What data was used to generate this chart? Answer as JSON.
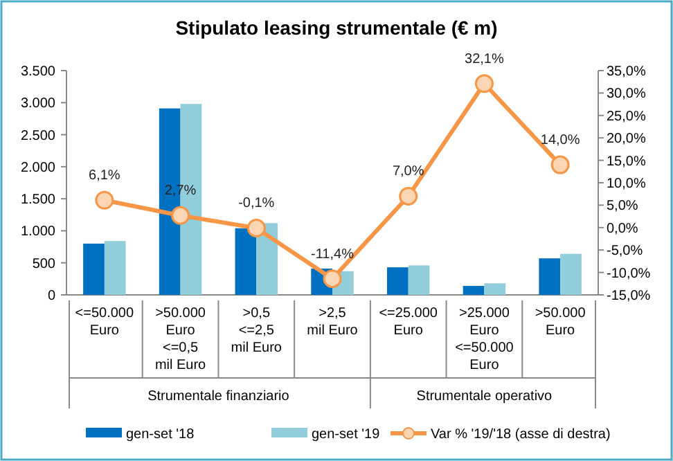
{
  "chart_data": {
    "type": "bar",
    "title": "Stipulato leasing strumentale (€ m)",
    "categories": [
      "<=50.000\nEuro",
      ">50.000\nEuro\n<=0,5\nmil Euro",
      ">0,5\n<=2,5\nmil Euro",
      ">2,5\nmil Euro",
      "<=25.000\nEuro",
      ">25.000\nEuro\n<=50.000\nEuro",
      ">50.000\nEuro"
    ],
    "series": [
      {
        "name": "gen-set '18",
        "color": "#0070c0",
        "values": [
          800,
          2910,
          1040,
          410,
          430,
          140,
          570
        ]
      },
      {
        "name": "gen-set '19",
        "color": "#92cddc",
        "values": [
          840,
          2980,
          1120,
          370,
          460,
          180,
          640
        ]
      },
      {
        "name": "Var % '19/'18 (asse di destra)",
        "type": "line",
        "axis": "y2",
        "color": "#f79646",
        "marker": "circle",
        "values": [
          6.1,
          2.7,
          -0.1,
          -11.4,
          7.0,
          32.1,
          14.0
        ],
        "value_labels": [
          "6,1%",
          "2,7%",
          "-0,1%",
          "-11,4%",
          "7,0%",
          "32,1%",
          "14,0%"
        ]
      }
    ],
    "annotations": [
      "Strumentale finanziario",
      "Strumentale operativo"
    ],
    "ylim": [
      0,
      3500
    ],
    "yticks": [
      0,
      500,
      {
        "value": 1000,
        "label": "1.000"
      },
      {
        "value": 1500,
        "label": "1.500"
      },
      {
        "value": 2000,
        "label": "2.000"
      },
      {
        "value": 2500,
        "label": "2.500"
      },
      {
        "value": 3000,
        "label": "3.000"
      },
      {
        "value": 3500,
        "label": "3.500"
      }
    ],
    "y2lim": [
      -15,
      35
    ],
    "y2ticks": [
      {
        "value": -15,
        "label": "-15,0%"
      },
      {
        "value": -10,
        "label": "-10,0%"
      },
      {
        "value": -5,
        "label": "-5,0%"
      },
      {
        "value": 0,
        "label": "0,0%"
      },
      {
        "value": 5,
        "label": "5,0%"
      },
      {
        "value": 10,
        "label": "10,0%"
      },
      {
        "value": 15,
        "label": "15,0%"
      },
      {
        "value": 20,
        "label": "20,0%"
      },
      {
        "value": 25,
        "label": "25,0%"
      },
      {
        "value": 30,
        "label": "30,0%"
      },
      {
        "value": 35,
        "label": "35,0%"
      }
    ],
    "legend": "bottom",
    "grid": false
  }
}
